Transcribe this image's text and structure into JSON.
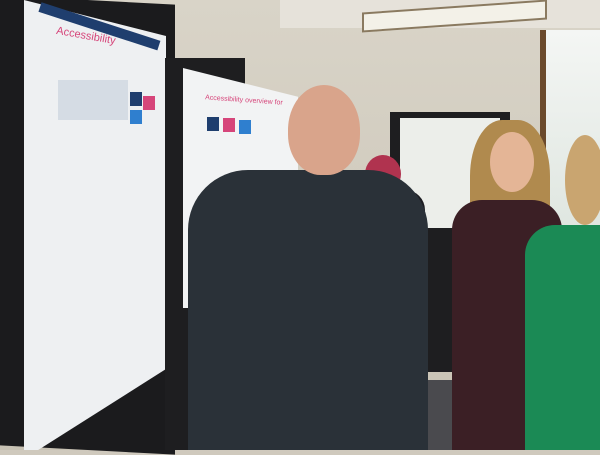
{
  "scene": {
    "poster_left_title": "Accessibility",
    "poster_center_title": "Accessibility overview for",
    "colors": {
      "accent_pink": "#d6457a",
      "header_blue": "#1f3e6e"
    }
  }
}
